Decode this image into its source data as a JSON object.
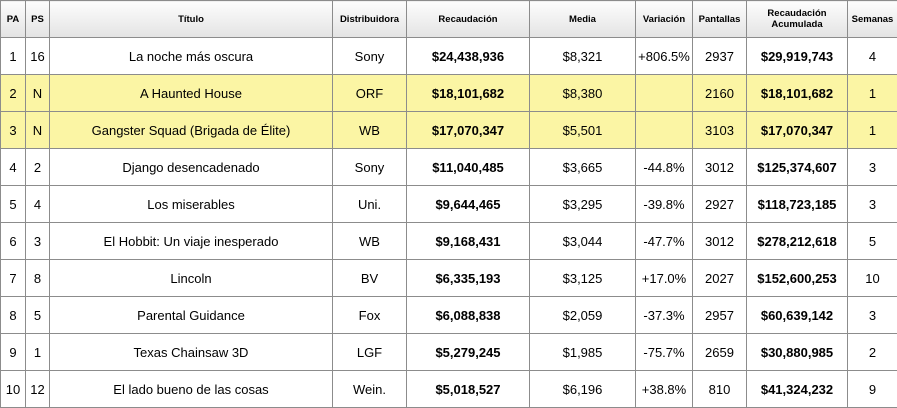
{
  "headers": {
    "pa": "PA",
    "ps": "PS",
    "titulo": "Título",
    "distribuidora": "Distribuidora",
    "recaudacion": "Recaudación",
    "media": "Media",
    "variacion": "Variación",
    "pantallas": "Pantallas",
    "recaudacion_acumulada_1": "Recaudación",
    "recaudacion_acumulada_2": "Acumulada",
    "semanas": "Semanas"
  },
  "rows": [
    {
      "pa": "1",
      "ps": "16",
      "titulo": "La noche más oscura",
      "distribuidora": "Sony",
      "recaudacion": "$24,438,936",
      "media": "$8,321",
      "variacion": "+806.5%",
      "pantallas": "2937",
      "acumulada": "$29,919,743",
      "semanas": "4",
      "highlight": false
    },
    {
      "pa": "2",
      "ps": "N",
      "titulo": "A Haunted House",
      "distribuidora": "ORF",
      "recaudacion": "$18,101,682",
      "media": "$8,380",
      "variacion": "",
      "pantallas": "2160",
      "acumulada": "$18,101,682",
      "semanas": "1",
      "highlight": true
    },
    {
      "pa": "3",
      "ps": "N",
      "titulo": "Gangster Squad (Brigada de Élite)",
      "distribuidora": "WB",
      "recaudacion": "$17,070,347",
      "media": "$5,501",
      "variacion": "",
      "pantallas": "3103",
      "acumulada": "$17,070,347",
      "semanas": "1",
      "highlight": true
    },
    {
      "pa": "4",
      "ps": "2",
      "titulo": "Django desencadenado",
      "distribuidora": "Sony",
      "recaudacion": "$11,040,485",
      "media": "$3,665",
      "variacion": "-44.8%",
      "pantallas": "3012",
      "acumulada": "$125,374,607",
      "semanas": "3",
      "highlight": false
    },
    {
      "pa": "5",
      "ps": "4",
      "titulo": "Los miserables",
      "distribuidora": "Uni.",
      "recaudacion": "$9,644,465",
      "media": "$3,295",
      "variacion": "-39.8%",
      "pantallas": "2927",
      "acumulada": "$118,723,185",
      "semanas": "3",
      "highlight": false
    },
    {
      "pa": "6",
      "ps": "3",
      "titulo": "El Hobbit: Un viaje inesperado",
      "distribuidora": "WB",
      "recaudacion": "$9,168,431",
      "media": "$3,044",
      "variacion": "-47.7%",
      "pantallas": "3012",
      "acumulada": "$278,212,618",
      "semanas": "5",
      "highlight": false
    },
    {
      "pa": "7",
      "ps": "8",
      "titulo": "Lincoln",
      "distribuidora": "BV",
      "recaudacion": "$6,335,193",
      "media": "$3,125",
      "variacion": "+17.0%",
      "pantallas": "2027",
      "acumulada": "$152,600,253",
      "semanas": "10",
      "highlight": false
    },
    {
      "pa": "8",
      "ps": "5",
      "titulo": "Parental Guidance",
      "distribuidora": "Fox",
      "recaudacion": "$6,088,838",
      "media": "$2,059",
      "variacion": "-37.3%",
      "pantallas": "2957",
      "acumulada": "$60,639,142",
      "semanas": "3",
      "highlight": false
    },
    {
      "pa": "9",
      "ps": "1",
      "titulo": "Texas Chainsaw 3D",
      "distribuidora": "LGF",
      "recaudacion": "$5,279,245",
      "media": "$1,985",
      "variacion": "-75.7%",
      "pantallas": "2659",
      "acumulada": "$30,880,985",
      "semanas": "2",
      "highlight": false
    },
    {
      "pa": "10",
      "ps": "12",
      "titulo": "El lado bueno de las cosas",
      "distribuidora": "Wein.",
      "recaudacion": "$5,018,527",
      "media": "$6,196",
      "variacion": "+38.8%",
      "pantallas": "810",
      "acumulada": "$41,324,232",
      "semanas": "9",
      "highlight": false
    }
  ]
}
